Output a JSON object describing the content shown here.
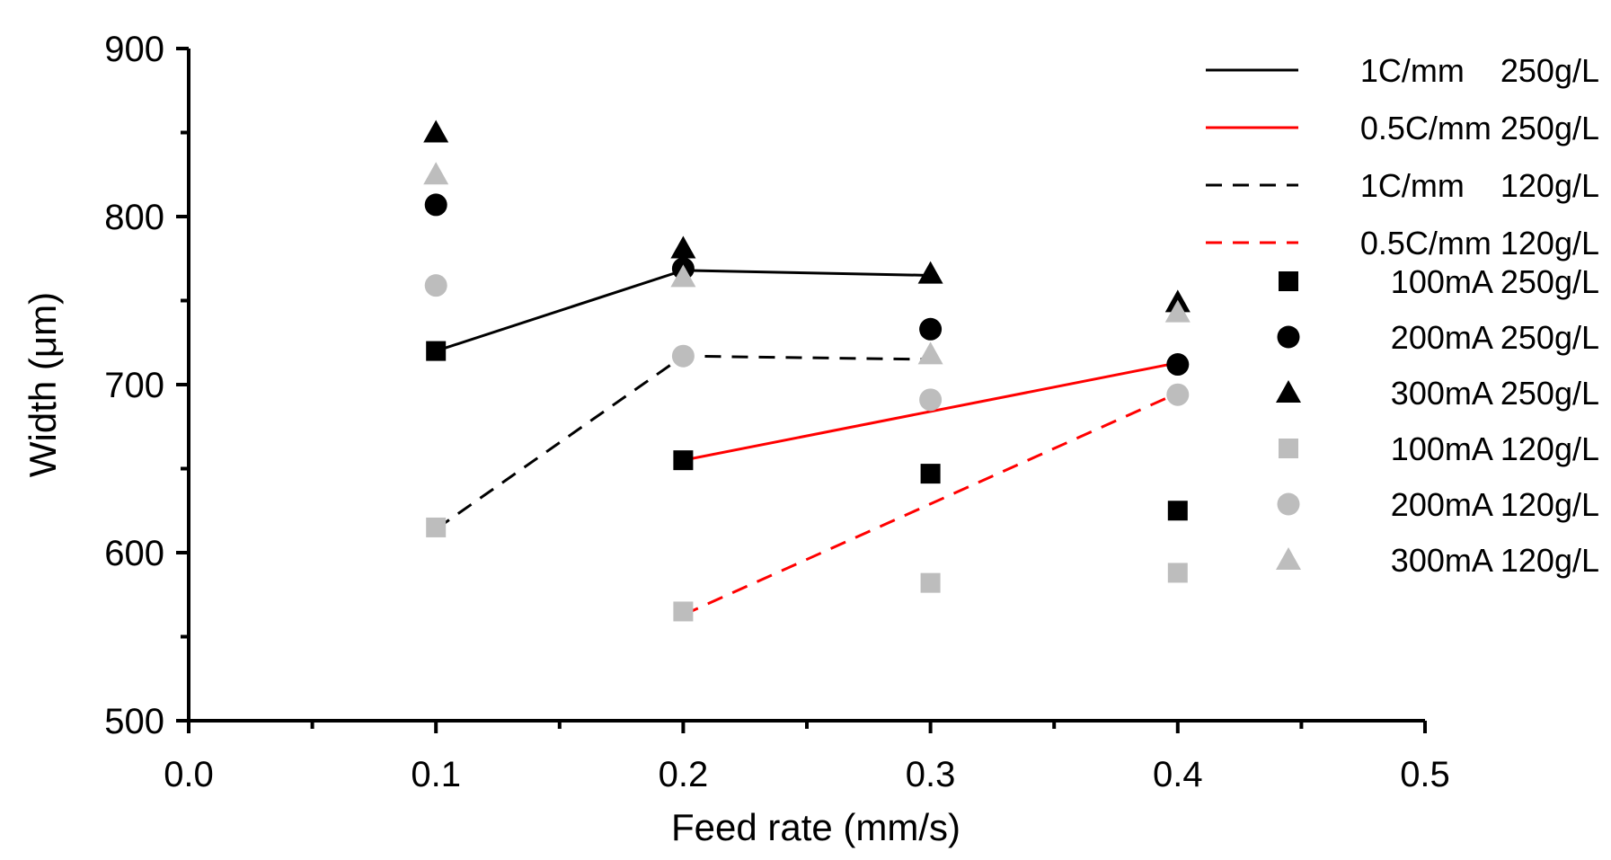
{
  "chart_data": {
    "type": "scatter",
    "xlabel": "Feed rate (mm/s)",
    "ylabel": "Width (μm)",
    "xlim": [
      0.0,
      0.5
    ],
    "ylim": [
      500,
      900
    ],
    "x_ticks": [
      "0.0",
      "0.1",
      "0.2",
      "0.3",
      "0.4",
      "0.5"
    ],
    "y_ticks": [
      "500",
      "600",
      "700",
      "800",
      "900"
    ],
    "grid": false,
    "legend_position": "top-right",
    "line_series": [
      {
        "name": "1C/mm    250g/L",
        "color": "#000000",
        "style": "solid",
        "x": [
          0.1,
          0.2,
          0.3
        ],
        "y": [
          720,
          768,
          765
        ]
      },
      {
        "name": "0.5C/mm 250g/L",
        "color": "#ff0000",
        "style": "solid",
        "x": [
          0.2,
          0.4
        ],
        "y": [
          655,
          713
        ]
      },
      {
        "name": "1C/mm    120g/L",
        "color": "#000000",
        "style": "dashed",
        "x": [
          0.1,
          0.2,
          0.3
        ],
        "y": [
          614,
          717,
          715
        ]
      },
      {
        "name": "0.5C/mm 120g/L",
        "color": "#ff0000",
        "style": "dashed",
        "x": [
          0.2,
          0.4
        ],
        "y": [
          563,
          695
        ]
      }
    ],
    "point_series": [
      {
        "name": "100mA 250g/L",
        "marker": "square",
        "color": "#000000",
        "x": [
          0.1,
          0.2,
          0.3,
          0.4
        ],
        "y": [
          720,
          655,
          647,
          625
        ]
      },
      {
        "name": "200mA 250g/L",
        "marker": "circle",
        "color": "#000000",
        "x": [
          0.1,
          0.2,
          0.3,
          0.4
        ],
        "y": [
          807,
          769,
          733,
          712
        ]
      },
      {
        "name": "300mA 250g/L",
        "marker": "triangle",
        "color": "#000000",
        "x": [
          0.1,
          0.2,
          0.3,
          0.4
        ],
        "y": [
          850,
          781,
          766,
          749
        ]
      },
      {
        "name": "100mA 120g/L",
        "marker": "square",
        "color": "#bdbdbd",
        "x": [
          0.1,
          0.2,
          0.3,
          0.4
        ],
        "y": [
          615,
          565,
          582,
          588
        ]
      },
      {
        "name": "200mA 120g/L",
        "marker": "circle",
        "color": "#bdbdbd",
        "x": [
          0.1,
          0.2,
          0.3,
          0.4
        ],
        "y": [
          759,
          717,
          691,
          694
        ]
      },
      {
        "name": "300mA 120g/L",
        "marker": "triangle",
        "color": "#bdbdbd",
        "x": [
          0.1,
          0.2,
          0.3,
          0.4
        ],
        "y": [
          825,
          764,
          718,
          743
        ]
      }
    ]
  }
}
